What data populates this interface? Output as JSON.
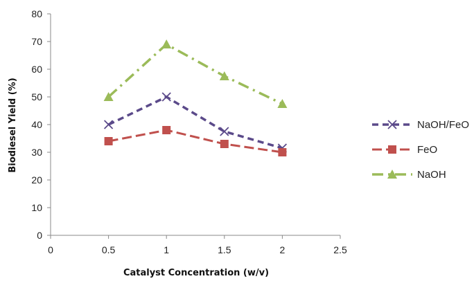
{
  "chart_data": {
    "type": "line",
    "title": "",
    "xlabel": "Catalyst Concentration (w/v)",
    "ylabel": "Biodiesel Yield (%)",
    "xlim": [
      0,
      2.5
    ],
    "ylim": [
      0,
      80
    ],
    "x_ticks": [
      "0",
      "0.5",
      "1",
      "1.5",
      "2",
      "2.5"
    ],
    "y_ticks": [
      "0",
      "10",
      "20",
      "30",
      "40",
      "50",
      "60",
      "70",
      "80"
    ],
    "grid": false,
    "legend_position": "right",
    "series": [
      {
        "name": "NaOH/FeO",
        "x": [
          0.5,
          1,
          1.5,
          2
        ],
        "values": [
          40,
          50,
          37.5,
          31.5
        ],
        "color": "#5b4a8a",
        "marker": "x",
        "line_style": "dashed"
      },
      {
        "name": "FeO",
        "x": [
          0.5,
          1,
          1.5,
          2
        ],
        "values": [
          34,
          38,
          33,
          30
        ],
        "color": "#c0504d",
        "marker": "square",
        "line_style": "long-dash"
      },
      {
        "name": "NaOH",
        "x": [
          0.5,
          1,
          1.5,
          2
        ],
        "values": [
          50,
          69,
          57.5,
          47.5
        ],
        "color": "#9bbb59",
        "marker": "triangle",
        "line_style": "dash-dot"
      }
    ]
  }
}
